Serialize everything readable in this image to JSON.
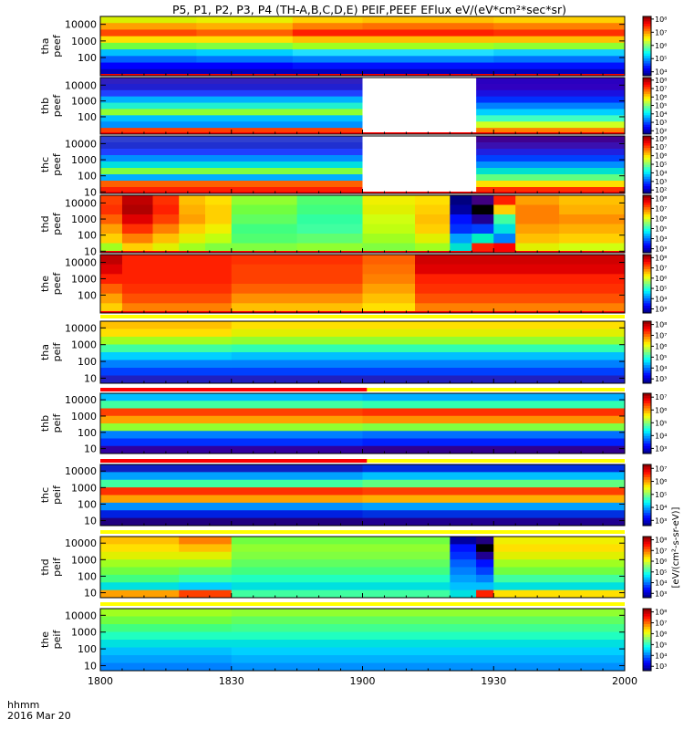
{
  "title": "P5, P1, P2, P3, P4 (TH-A,B,C,D,E) PEIF,PEEF EFlux eV/(eV*cm²*sec*sr)",
  "time_axis": {
    "label_line1": "hhmm",
    "label_line2": "2016 Mar 20",
    "ticks": [
      "1800",
      "1830",
      "1900",
      "1930",
      "2000"
    ],
    "tick_values": [
      0,
      30,
      60,
      90,
      120
    ],
    "range": [
      0,
      120
    ]
  },
  "colorbar_label": "[eV/(cm²-s-sr-eV)]",
  "colors": {
    "frame": "#000000",
    "missing": "#ffffff",
    "stripe_red": "#ff0000",
    "stripe_yellow": "#ffff00"
  },
  "chart_data": {
    "type": "heatmap",
    "y_scale": "log",
    "x_units": "minutes after 1800 UT",
    "y_units": "eV",
    "panels": [
      {
        "id": "tha_peef",
        "probe": "tha",
        "product": "peef",
        "yticks": [
          "10000",
          "1000",
          "100"
        ],
        "ylim_ev": [
          8,
          30000
        ],
        "cbar_ticks": [
          "10⁸",
          "10⁷",
          "10⁶",
          "10⁵",
          "10⁴"
        ],
        "cbar_range_exp": [
          3.7,
          8.2
        ],
        "bins": [
          [
            0,
            22,
            "#d8f000",
            "#ffa000",
            "#ff4800",
            "#ffe000",
            "#70ff40",
            "#00c0ff",
            "#0060ff",
            "#0000ff",
            "#0000c0"
          ],
          [
            22,
            44,
            "#e8f000",
            "#ffb000",
            "#ff6000",
            "#ffe000",
            "#80ff40",
            "#00d0ff",
            "#0070ff",
            "#0000ff",
            "#0000c0"
          ],
          [
            44,
            60,
            "#ffd000",
            "#ff8000",
            "#ff2000",
            "#ffc000",
            "#a0ff20",
            "#20e0ff",
            "#0080ff",
            "#0010ff",
            "#0000c0"
          ],
          [
            60,
            90,
            "#ffc000",
            "#ff7000",
            "#ff2000",
            "#ffc000",
            "#a0ff20",
            "#20e0ff",
            "#0080ff",
            "#0010ff",
            "#0000c0"
          ],
          [
            90,
            120,
            "#ffd000",
            "#ff8000",
            "#ff3000",
            "#ffc000",
            "#90ff30",
            "#10d0ff",
            "#0070ff",
            "#0010ff",
            "#0000c0"
          ]
        ],
        "bottom_line": "#ff0000",
        "gaps": []
      },
      {
        "id": "thb_peef",
        "probe": "thb",
        "product": "peef",
        "yticks": [
          "10000",
          "1000",
          "100"
        ],
        "ylim_ev": [
          8,
          30000
        ],
        "cbar_ticks": [
          "10⁸",
          "10⁷",
          "10⁶",
          "10⁵",
          "10⁴",
          "10³",
          "10²"
        ],
        "cbar_range_exp": [
          1.6,
          8.3
        ],
        "bins": [
          [
            0,
            60,
            "#3020c0",
            "#2020d0",
            "#2040ff",
            "#00b0ff",
            "#20f0d0",
            "#90ff30",
            "#00c0ff",
            "#0090ff",
            "#ff4000"
          ],
          [
            60,
            73,
            "#3020c0",
            "#2020d0",
            "#2040ff",
            "#00b0ff",
            "#20f0d0",
            "#90ff30",
            "#00c0ff",
            "#0090ff",
            "#ff4000"
          ],
          [
            86,
            120,
            "#2a00c0",
            "#3000c0",
            "#1a10e0",
            "#0030ff",
            "#0080ff",
            "#00d0ff",
            "#40ffc0",
            "#d0ff20",
            "#ff8000"
          ]
        ],
        "bottom_line": "#ff0000",
        "gaps": [
          [
            60,
            86
          ]
        ]
      },
      {
        "id": "thc_peef",
        "probe": "thc",
        "product": "peef",
        "yticks": [
          "10000",
          "1000",
          "100",
          "10"
        ],
        "ylim_ev": [
          8,
          30000
        ],
        "cbar_ticks": [
          "10⁸",
          "10⁷",
          "10⁶",
          "10⁵",
          "10⁴",
          "10³",
          "10²"
        ],
        "cbar_range_exp": [
          1.6,
          8.3
        ],
        "bins": [
          [
            0,
            60,
            "#3040d0",
            "#2030d0",
            "#2040ff",
            "#0090ff",
            "#00e0e0",
            "#80ff40",
            "#00b0ff",
            "#ff6000",
            "#ff2000"
          ],
          [
            86,
            120,
            "#400090",
            "#3a10b0",
            "#2020e0",
            "#0040ff",
            "#0090ff",
            "#00e0d0",
            "#60ff80",
            "#ffe000",
            "#ff3000"
          ]
        ],
        "bottom_line": "#ff0000",
        "gaps": [
          [
            60,
            86
          ]
        ]
      },
      {
        "id": "thd_peef",
        "probe": "thd",
        "product": "peef",
        "yticks": [
          "10000",
          "1000",
          "100",
          "10"
        ],
        "ylim_ev": [
          8,
          30000
        ],
        "cbar_ticks": [
          "10⁸",
          "10⁷",
          "10⁶",
          "10⁵",
          "10⁴",
          "10³"
        ],
        "cbar_range_exp": [
          2.6,
          8.3
        ],
        "bins": [
          [
            0,
            5,
            "#ff4000",
            "#ff3000",
            "#ff6000",
            "#ffa000",
            "#ffd000",
            "#a0ff20"
          ],
          [
            5,
            12,
            "#c00000",
            "#b00000",
            "#e00000",
            "#ff3000",
            "#ff8000",
            "#ffd000"
          ],
          [
            12,
            18,
            "#ff3000",
            "#ff2000",
            "#ff4000",
            "#ff8000",
            "#ffc000",
            "#e0f000"
          ],
          [
            18,
            24,
            "#ffc000",
            "#ffb000",
            "#ffa000",
            "#ffd000",
            "#e0f000",
            "#a0ff20"
          ],
          [
            24,
            30,
            "#ffe000",
            "#ffd000",
            "#ffd000",
            "#f0f000",
            "#c0ff10",
            "#80ff40"
          ],
          [
            30,
            45,
            "#90ff30",
            "#70ff40",
            "#60ff60",
            "#40ff80",
            "#50ff70",
            "#80ff40"
          ],
          [
            45,
            60,
            "#50ff70",
            "#40ff80",
            "#30ffa0",
            "#40ffa0",
            "#60ff70",
            "#90ff30"
          ],
          [
            60,
            72,
            "#f0f000",
            "#e0f000",
            "#d0ff10",
            "#c0ff10",
            "#a0ff20",
            "#80ff40"
          ],
          [
            72,
            80,
            "#ffe000",
            "#ffd000",
            "#ffc000",
            "#ffd000",
            "#e0f000",
            "#a0ff20"
          ],
          [
            80,
            85,
            "#000080",
            "#0000a0",
            "#0010ff",
            "#0030ff",
            "#00a0ff",
            "#00e0d0"
          ],
          [
            85,
            90,
            "#400080",
            "#000000",
            "#200090",
            "#0040ff",
            "#00f0c0",
            "#ff2000"
          ],
          [
            90,
            95,
            "#ff2000",
            "#ffd000",
            "#40ffa0",
            "#00e0e0",
            "#0080ff",
            "#ff0000"
          ],
          [
            95,
            105,
            "#ffa000",
            "#ff8000",
            "#ff8000",
            "#ffa000",
            "#ffc000",
            "#e0f000"
          ],
          [
            105,
            120,
            "#ffc000",
            "#ffb000",
            "#ff9000",
            "#ffb000",
            "#ffd000",
            "#d0ff10"
          ]
        ],
        "bottom_line": "#ff0000",
        "gaps": []
      },
      {
        "id": "the_peef",
        "probe": "the",
        "product": "peef",
        "yticks": [
          "10000",
          "1000",
          "100"
        ],
        "ylim_ev": [
          8,
          30000
        ],
        "cbar_ticks": [
          "10⁸",
          "10⁷",
          "10⁶",
          "10⁵",
          "10⁴",
          "10³"
        ],
        "cbar_range_exp": [
          2.6,
          8.3
        ],
        "bins": [
          [
            0,
            5,
            "#c00000",
            "#e00000",
            "#ff2000",
            "#ff6000",
            "#ffa000",
            "#ffd000"
          ],
          [
            5,
            30,
            "#ff2000",
            "#ff2000",
            "#ff2000",
            "#ff3000",
            "#ff5000",
            "#ff8000"
          ],
          [
            30,
            60,
            "#ff3000",
            "#ff4000",
            "#ff4000",
            "#ff6000",
            "#ff9000",
            "#ffc000"
          ],
          [
            60,
            72,
            "#ff6000",
            "#ff7000",
            "#ff8000",
            "#ffa000",
            "#ffc000",
            "#ffe000"
          ],
          [
            72,
            120,
            "#d00000",
            "#e00000",
            "#ff2000",
            "#ff3000",
            "#ff5000",
            "#ff8000"
          ]
        ],
        "bottom_line": "#ff0000",
        "gaps": []
      },
      {
        "id": "tha_peif",
        "probe": "tha",
        "product": "peif",
        "yticks": [
          "10000",
          "1000",
          "100",
          "10"
        ],
        "ylim_ev": [
          5,
          25000
        ],
        "cbar_ticks": [
          "10⁸",
          "10⁷",
          "10⁶",
          "10⁵",
          "10⁴",
          "10³"
        ],
        "cbar_range_exp": [
          2.6,
          8.3
        ],
        "bins": [
          [
            0,
            30,
            "#ffc000",
            "#ffe000",
            "#a0ff20",
            "#40ffa0",
            "#00d0ff",
            "#0080ff",
            "#0040ff",
            "#2020c0"
          ],
          [
            30,
            120,
            "#ffe000",
            "#e0f000",
            "#90ff30",
            "#30ffb0",
            "#00c0ff",
            "#0080ff",
            "#0040ff",
            "#2020c0"
          ]
        ],
        "stripe_above": "#ffff00",
        "gaps": []
      },
      {
        "id": "thb_peif",
        "probe": "thb",
        "product": "peif",
        "yticks": [
          "10000",
          "1000",
          "100",
          "10"
        ],
        "ylim_ev": [
          5,
          25000
        ],
        "cbar_ticks": [
          "10⁷",
          "10⁶",
          "10⁵",
          "10⁴",
          "10³"
        ],
        "cbar_range_exp": [
          2.6,
          7.3
        ],
        "bins": [
          [
            0,
            60,
            "#00c0ff",
            "#40ffa0",
            "#ff4000",
            "#ffa000",
            "#90ff30",
            "#0080ff",
            "#0030ff",
            "#3000a0"
          ],
          [
            60,
            120,
            "#00b0ff",
            "#30ffb0",
            "#ff3000",
            "#ff9000",
            "#80ff40",
            "#0070ff",
            "#0020ff",
            "#300090"
          ]
        ],
        "stripe_above": "#ff0000",
        "stripe_above_end": 61,
        "gaps": []
      },
      {
        "id": "thc_peif",
        "probe": "thc",
        "product": "peif",
        "yticks": [
          "10000",
          "1000",
          "100",
          "10"
        ],
        "ylim_ev": [
          5,
          25000
        ],
        "cbar_ticks": [
          "10⁷",
          "10⁶",
          "10⁵",
          "10⁴",
          "10³"
        ],
        "cbar_range_exp": [
          2.6,
          7.3
        ],
        "bins": [
          [
            0,
            60,
            "#1020c0",
            "#00a0ff",
            "#40ffa0",
            "#ff3000",
            "#ffa000",
            "#0090ff",
            "#0020e0",
            "#200080"
          ],
          [
            60,
            120,
            "#0030e0",
            "#00c0ff",
            "#60ff80",
            "#ff4000",
            "#ffb000",
            "#00a0ff",
            "#0030e0",
            "#200090"
          ]
        ],
        "stripe_above": "#ff0000",
        "stripe_above_end": 61,
        "gaps": []
      },
      {
        "id": "thd_peif",
        "probe": "thd",
        "product": "peif",
        "yticks": [
          "10000",
          "1000",
          "100",
          "10"
        ],
        "ylim_ev": [
          5,
          25000
        ],
        "cbar_ticks": [
          "10⁸",
          "10⁷",
          "10⁶",
          "10⁵",
          "10⁴",
          "10³"
        ],
        "cbar_range_exp": [
          2.6,
          8.3
        ],
        "bins": [
          [
            0,
            18,
            "#ffc000",
            "#ffe000",
            "#e0f000",
            "#a0ff20",
            "#70ff40",
            "#40ff80",
            "#00e0e0",
            "#ffa000"
          ],
          [
            18,
            30,
            "#ff8000",
            "#ffc000",
            "#e0f000",
            "#a0ff20",
            "#60ff60",
            "#30ffb0",
            "#00d0ff",
            "#ff4000"
          ],
          [
            30,
            80,
            "#70ff40",
            "#90ff30",
            "#80ff40",
            "#60ff60",
            "#40ff80",
            "#20ffc0",
            "#00e0e0",
            "#40ffa0"
          ],
          [
            80,
            86,
            "#0000a0",
            "#0010ff",
            "#0030ff",
            "#0060ff",
            "#0080ff",
            "#00a0ff",
            "#00c0ff",
            "#00e0e0"
          ],
          [
            86,
            90,
            "#200080",
            "#000000",
            "#200090",
            "#0010ff",
            "#0040ff",
            "#0080ff",
            "#00c0ff",
            "#ff2000"
          ],
          [
            90,
            120,
            "#f0f000",
            "#ffe000",
            "#e0f000",
            "#a0ff20",
            "#70ff40",
            "#40ffa0",
            "#00e0e0",
            "#ffe000"
          ]
        ],
        "stripe_above": "#ffff00",
        "gaps": []
      },
      {
        "id": "the_peif",
        "probe": "the",
        "product": "peif",
        "yticks": [
          "10000",
          "1000",
          "100",
          "10"
        ],
        "ylim_ev": [
          5,
          25000
        ],
        "cbar_ticks": [
          "10⁸",
          "10⁷",
          "10⁶",
          "10⁵",
          "10⁴",
          "10³"
        ],
        "cbar_range_exp": [
          2.6,
          8.3
        ],
        "bins": [
          [
            0,
            30,
            "#a0ff20",
            "#70ff40",
            "#40ff80",
            "#20ffc0",
            "#00e0e0",
            "#00c0ff",
            "#00a0ff",
            "#0080ff"
          ],
          [
            30,
            120,
            "#90ff30",
            "#60ff60",
            "#40ff90",
            "#20ffc0",
            "#00e0e0",
            "#00d0ff",
            "#00b0ff",
            "#0090ff"
          ]
        ],
        "stripe_above": "#ffff00",
        "gaps": []
      }
    ]
  }
}
